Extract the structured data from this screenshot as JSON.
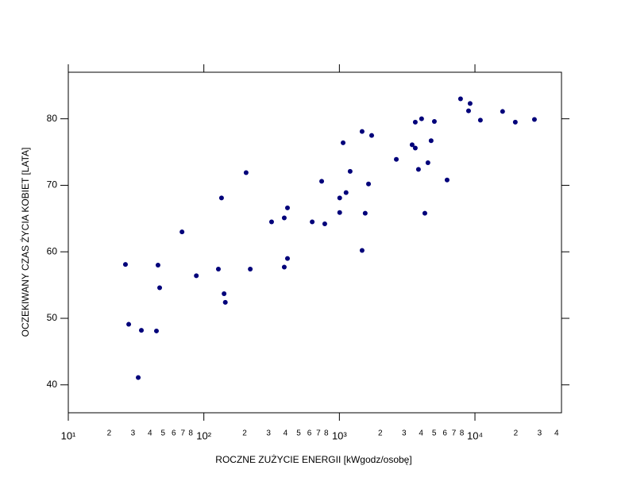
{
  "chart_data": {
    "type": "scatter",
    "xlabel": "ROCZNE ZUŻYCIE ENERGII  [kWgodz/osobę]",
    "ylabel": "OCZEKIWANY CZAS ŻYCIA KOBIET  [LATA]",
    "xscale": "log",
    "grid": false,
    "color": "#00007a",
    "xlim": [
      10,
      43500
    ],
    "ylim": [
      35.8,
      87
    ],
    "xticks": [
      {
        "value": 10,
        "label": "10¹"
      },
      {
        "value": 20,
        "label": "2"
      },
      {
        "value": 30,
        "label": "3"
      },
      {
        "value": 40,
        "label": "4"
      },
      {
        "value": 50,
        "label": "5"
      },
      {
        "value": 60,
        "label": "6"
      },
      {
        "value": 70,
        "label": "7"
      },
      {
        "value": 80,
        "label": "8"
      },
      {
        "value": 100,
        "label": "10²"
      },
      {
        "value": 200,
        "label": "2"
      },
      {
        "value": 300,
        "label": "3"
      },
      {
        "value": 400,
        "label": "4"
      },
      {
        "value": 500,
        "label": "5"
      },
      {
        "value": 600,
        "label": "6"
      },
      {
        "value": 700,
        "label": "7"
      },
      {
        "value": 800,
        "label": "8"
      },
      {
        "value": 1000,
        "label": "10³"
      },
      {
        "value": 2000,
        "label": "2"
      },
      {
        "value": 3000,
        "label": "3"
      },
      {
        "value": 4000,
        "label": "4"
      },
      {
        "value": 5000,
        "label": "5"
      },
      {
        "value": 6000,
        "label": "6"
      },
      {
        "value": 7000,
        "label": "7"
      },
      {
        "value": 8000,
        "label": "8"
      },
      {
        "value": 10000,
        "label": "10⁴"
      },
      {
        "value": 20000,
        "label": "2"
      },
      {
        "value": 30000,
        "label": "3"
      },
      {
        "value": 40000,
        "label": "4"
      }
    ],
    "yticks": [
      40,
      50,
      60,
      70,
      80
    ],
    "x": [
      26.4,
      27.9,
      34.6,
      32.8,
      44.7,
      45.9,
      47.2,
      69,
      88,
      128,
      135,
      141,
      144,
      205,
      220,
      316,
      392,
      392,
      414,
      414,
      630,
      740,
      780,
      1005,
      1005,
      1065,
      1120,
      1200,
      1470,
      1470,
      1550,
      1640,
      1730,
      2630,
      3440,
      3630,
      3630,
      3830,
      4040,
      4270,
      4500,
      4750,
      5020,
      6230,
      7830,
      8970,
      9210,
      10970,
      15990,
      19850,
      27470
    ],
    "values": [
      58.1,
      49.1,
      48.2,
      41.1,
      48.1,
      58,
      54.6,
      63,
      56.4,
      57.4,
      68.1,
      53.7,
      52.4,
      71.9,
      57.4,
      64.5,
      65.1,
      57.7,
      66.6,
      59,
      64.5,
      70.6,
      64.2,
      65.9,
      68.1,
      76.4,
      68.9,
      72.1,
      78.1,
      60.2,
      65.8,
      70.2,
      77.5,
      73.9,
      76.1,
      75.6,
      79.5,
      72.4,
      80,
      65.8,
      73.4,
      76.7,
      79.6,
      70.8,
      83,
      81.2,
      82.3,
      79.8,
      81.1,
      79.5,
      79.9
    ]
  }
}
